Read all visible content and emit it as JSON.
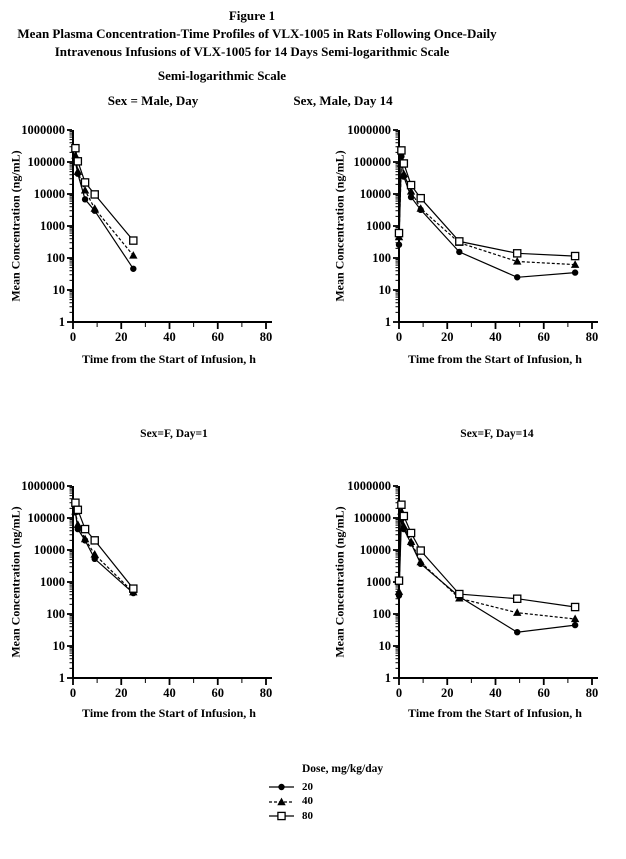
{
  "figure": {
    "label": "Figure 1",
    "title_line1": "Mean Plasma Concentration-Time Profiles of VLX-1005 in Rats Following Once-Daily",
    "title_line2": "Intravenous Infusions of VLX-1005 for 14 Days Semi-logarithmic Scale",
    "subtitle": "Semi-logarithmic Scale"
  },
  "colors": {
    "foreground": "#000000",
    "background": "#ffffff"
  },
  "legend": {
    "title": "Dose, mg/kg/day",
    "position": "bottom-center",
    "items": [
      {
        "label": "20",
        "marker": "circle-filled",
        "line": "solid"
      },
      {
        "label": "40",
        "marker": "triangle-filled",
        "line": "dashed"
      },
      {
        "label": "80",
        "marker": "square-open",
        "line": "solid"
      }
    ]
  },
  "chart_data": [
    {
      "type": "line",
      "title": "Sex = Male, Day",
      "xlabel": "Time from the Start of Infusion, h",
      "ylabel": "Mean Concentration (ng/mL)",
      "xlim": [
        0,
        80
      ],
      "x_ticks": [
        0,
        20,
        40,
        60,
        80
      ],
      "y_scale": "log",
      "ylim": [
        1,
        1000000
      ],
      "grid": false,
      "series": [
        {
          "name": "20",
          "x": [
            1,
            2,
            5,
            9,
            25
          ],
          "y": [
            100000,
            43000,
            6800,
            3000,
            46
          ]
        },
        {
          "name": "40",
          "x": [
            1,
            2,
            5,
            9,
            25
          ],
          "y": [
            160000,
            50000,
            13000,
            3500,
            120
          ]
        },
        {
          "name": "80",
          "x": [
            1,
            2,
            5,
            9,
            25
          ],
          "y": [
            270000,
            105000,
            23000,
            9700,
            350
          ]
        }
      ]
    },
    {
      "type": "line",
      "title": "Sex, Male, Day 14",
      "xlabel": "Time from the Start of Infusion, h",
      "ylabel": "Mean Concentration (ng/mL)",
      "xlim": [
        0,
        80
      ],
      "x_ticks": [
        0,
        20,
        40,
        60,
        80
      ],
      "y_scale": "log",
      "ylim": [
        1,
        1000000
      ],
      "grid": false,
      "series": [
        {
          "name": "20",
          "x": [
            0,
            1,
            2,
            5,
            9,
            25,
            49,
            73
          ],
          "y": [
            260,
            150000,
            35000,
            8000,
            3200,
            155,
            25,
            35
          ]
        },
        {
          "name": "40",
          "x": [
            0,
            1,
            2,
            5,
            9,
            25,
            49,
            73
          ],
          "y": [
            450,
            90000,
            42000,
            12000,
            3500,
            300,
            78,
            62
          ]
        },
        {
          "name": "80",
          "x": [
            0,
            1,
            2,
            5,
            9,
            25,
            49,
            73
          ],
          "y": [
            600,
            230000,
            90000,
            19000,
            7400,
            330,
            140,
            115
          ]
        }
      ]
    },
    {
      "type": "line",
      "title": "Sex=F, Day=1",
      "xlabel": "Time from the Start of Infusion, h",
      "ylabel": "Mean Concentration (ng/mL)",
      "xlim": [
        0,
        80
      ],
      "x_ticks": [
        0,
        20,
        40,
        60,
        80
      ],
      "y_scale": "log",
      "ylim": [
        1,
        1000000
      ],
      "grid": false,
      "series": [
        {
          "name": "20",
          "x": [
            1,
            2,
            5,
            9,
            25
          ],
          "y": [
            150000,
            45000,
            20000,
            5300,
            450
          ]
        },
        {
          "name": "40",
          "x": [
            1,
            2,
            5,
            9,
            25
          ],
          "y": [
            160000,
            62000,
            22000,
            7300,
            480
          ]
        },
        {
          "name": "80",
          "x": [
            1,
            2,
            5,
            9,
            25
          ],
          "y": [
            300000,
            180000,
            45000,
            20000,
            620
          ]
        }
      ]
    },
    {
      "type": "line",
      "title": "Sex=F, Day=14",
      "xlabel": "Time from the Start of Infusion, h",
      "ylabel": "Mean Concentration (ng/mL)",
      "xlim": [
        0,
        80
      ],
      "x_ticks": [
        0,
        20,
        40,
        60,
        80
      ],
      "y_scale": "log",
      "ylim": [
        1,
        1000000
      ],
      "grid": false,
      "series": [
        {
          "name": "20",
          "x": [
            0,
            1,
            2,
            5,
            9,
            25,
            49,
            73
          ],
          "y": [
            380,
            90000,
            45000,
            16000,
            3700,
            350,
            27,
            45
          ]
        },
        {
          "name": "40",
          "x": [
            0,
            1,
            2,
            5,
            9,
            25,
            49,
            73
          ],
          "y": [
            500,
            160000,
            55000,
            18000,
            4200,
            310,
            110,
            70
          ]
        },
        {
          "name": "80",
          "x": [
            0,
            1,
            2,
            5,
            9,
            25,
            49,
            73
          ],
          "y": [
            1100,
            260000,
            115000,
            34000,
            9600,
            420,
            300,
            165
          ]
        }
      ]
    }
  ]
}
